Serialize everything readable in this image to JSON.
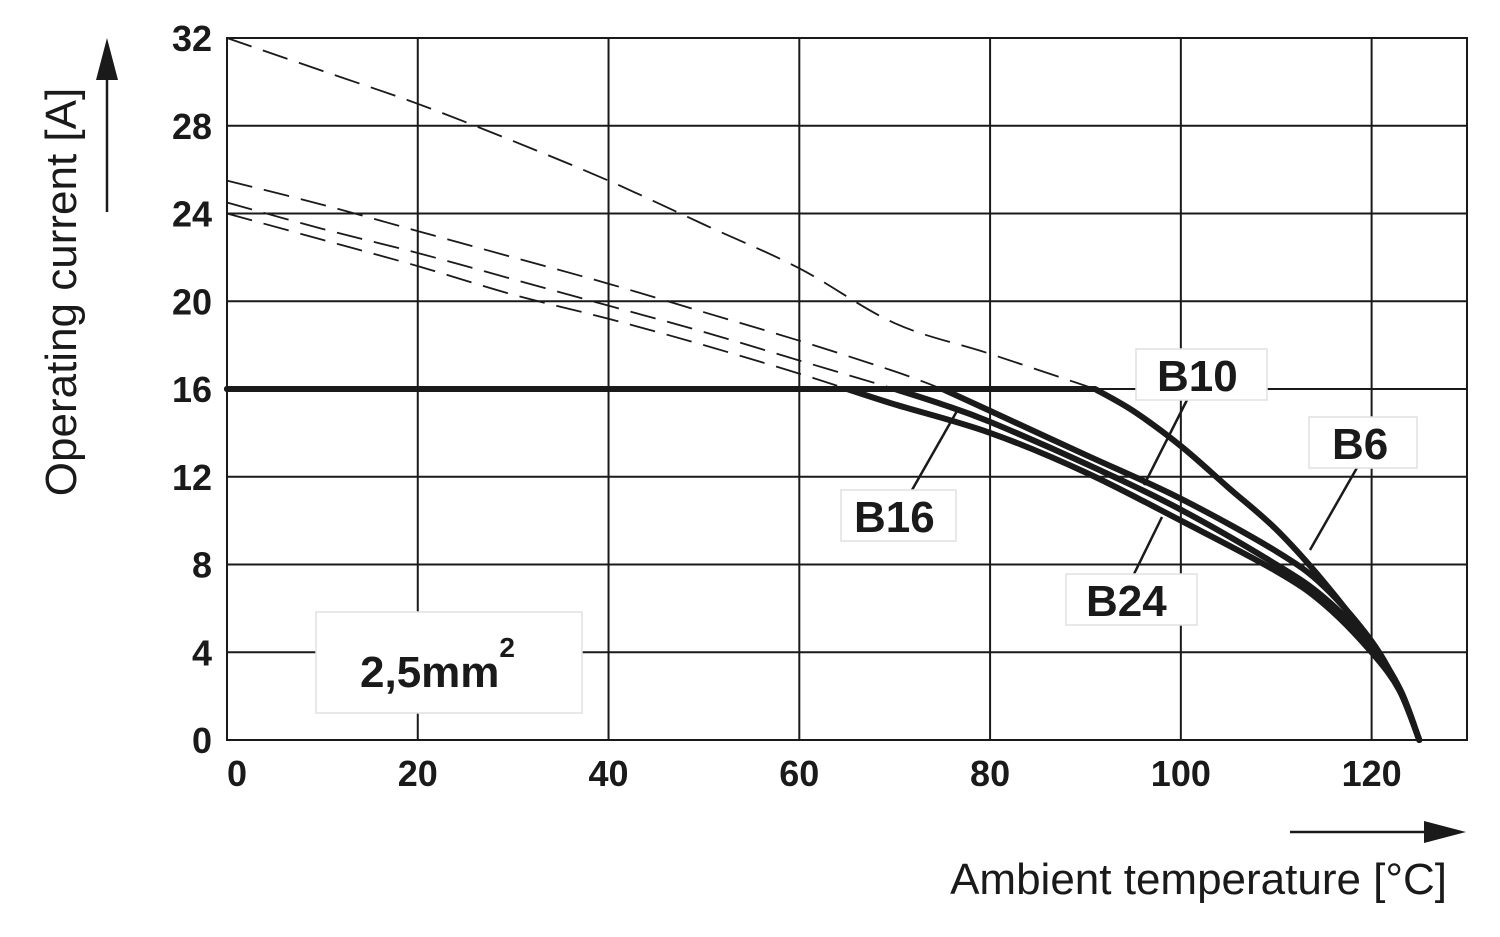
{
  "chart_data": {
    "type": "line",
    "xlabel": "Ambient temperature [°C]",
    "ylabel": "Operating current [A]",
    "xlim": [
      0,
      130
    ],
    "ylim": [
      0,
      32
    ],
    "x_ticks": [
      0,
      20,
      40,
      60,
      80,
      100,
      120
    ],
    "y_ticks": [
      0,
      4,
      8,
      12,
      16,
      20,
      24,
      28,
      32
    ],
    "grid": true,
    "annotation": {
      "base": "2,5mm",
      "sup": "2"
    },
    "series": [
      {
        "name": "B6",
        "solid": [
          [
            0,
            16
          ],
          [
            91,
            16
          ],
          [
            95,
            15
          ],
          [
            100,
            13.4
          ],
          [
            105,
            11.5
          ],
          [
            110,
            9.6
          ],
          [
            115,
            7.2
          ],
          [
            120,
            4.4
          ],
          [
            123,
            2.3
          ],
          [
            125,
            0
          ]
        ],
        "dashed": [
          [
            0,
            32
          ],
          [
            10,
            30.5
          ],
          [
            20,
            29
          ],
          [
            30,
            27.3
          ],
          [
            40,
            25.5
          ],
          [
            50,
            23.5
          ],
          [
            60,
            21.5
          ],
          [
            70,
            19
          ],
          [
            80,
            17.6
          ],
          [
            91,
            16
          ]
        ]
      },
      {
        "name": "B10",
        "solid": [
          [
            0,
            16
          ],
          [
            75,
            16
          ],
          [
            80,
            15
          ],
          [
            90,
            13
          ],
          [
            100,
            11
          ],
          [
            110,
            8.6
          ],
          [
            115,
            7
          ],
          [
            120,
            4.5
          ],
          [
            123,
            2.2
          ],
          [
            125,
            0
          ]
        ],
        "dashed": [
          [
            0,
            25.5
          ],
          [
            10,
            24.4
          ],
          [
            20,
            23.2
          ],
          [
            30,
            22
          ],
          [
            40,
            20.8
          ],
          [
            50,
            19.5
          ],
          [
            60,
            18.2
          ],
          [
            70,
            16.8
          ],
          [
            75,
            16
          ]
        ]
      },
      {
        "name": "B16",
        "solid": [
          [
            0,
            16
          ],
          [
            70,
            16
          ],
          [
            75,
            15.3
          ],
          [
            80,
            14.5
          ],
          [
            90,
            12.6
          ],
          [
            100,
            10.5
          ],
          [
            110,
            8
          ],
          [
            115,
            6.5
          ],
          [
            120,
            4.3
          ],
          [
            123,
            2.2
          ],
          [
            125,
            0
          ]
        ],
        "dashed": [
          [
            0,
            24.5
          ],
          [
            10,
            23.3
          ],
          [
            20,
            22.2
          ],
          [
            30,
            21
          ],
          [
            40,
            19.8
          ],
          [
            50,
            18.6
          ],
          [
            60,
            17.3
          ],
          [
            70,
            16
          ]
        ]
      },
      {
        "name": "B24",
        "solid": [
          [
            0,
            16
          ],
          [
            65,
            16
          ],
          [
            70,
            15.3
          ],
          [
            80,
            14
          ],
          [
            90,
            12.2
          ],
          [
            100,
            10
          ],
          [
            110,
            7.7
          ],
          [
            115,
            6.2
          ],
          [
            120,
            4
          ],
          [
            123,
            2.2
          ],
          [
            125,
            0
          ]
        ],
        "dashed": [
          [
            0,
            24
          ],
          [
            10,
            22.8
          ],
          [
            20,
            21.6
          ],
          [
            30,
            20.3
          ],
          [
            40,
            19.2
          ],
          [
            50,
            18
          ],
          [
            60,
            16.7
          ],
          [
            65,
            16
          ]
        ]
      }
    ]
  }
}
